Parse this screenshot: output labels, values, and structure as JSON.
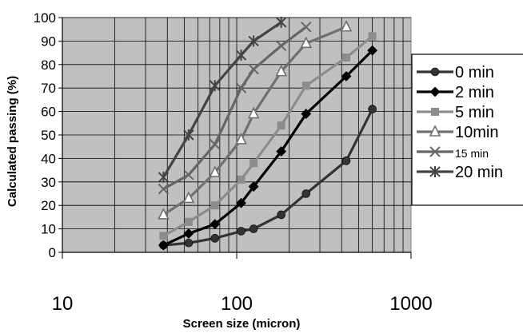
{
  "chart_data": {
    "type": "line",
    "xscale": "log",
    "xlim": [
      10,
      1000
    ],
    "ylim": [
      0,
      100
    ],
    "xticks": [
      "10",
      "100",
      "1000"
    ],
    "yticks": [
      "0",
      "10",
      "20",
      "30",
      "40",
      "50",
      "60",
      "70",
      "80",
      "90",
      "100"
    ],
    "xlabel": "Screen size (micron)",
    "ylabel": "Calculated passing (%)",
    "grid": true,
    "plot_background": "#c0c0c0",
    "legend_position": "right",
    "series": [
      {
        "name": "0 min",
        "marker": "circle",
        "color": "#333333",
        "x": [
          38,
          53,
          75,
          106,
          125,
          180,
          250,
          425,
          600
        ],
        "y": [
          3,
          4,
          6,
          9,
          10,
          16,
          25,
          39,
          61
        ]
      },
      {
        "name": "2 min",
        "marker": "diamond",
        "color": "#000000",
        "x": [
          38,
          53,
          75,
          106,
          125,
          180,
          250,
          425,
          600
        ],
        "y": [
          3,
          8,
          12,
          21,
          28,
          43,
          59,
          75,
          86
        ]
      },
      {
        "name": "5 min",
        "marker": "square",
        "color": "#8c8c8c",
        "x": [
          38,
          53,
          75,
          106,
          125,
          180,
          250,
          425,
          600
        ],
        "y": [
          7,
          13,
          20,
          31,
          38,
          54,
          71,
          83,
          92
        ]
      },
      {
        "name": "10min",
        "marker": "triangle",
        "color": "#707070",
        "x": [
          38,
          53,
          75,
          106,
          125,
          180,
          250,
          425
        ],
        "y": [
          16,
          23,
          34,
          48,
          59,
          77,
          89,
          96
        ]
      },
      {
        "name": "15 min",
        "marker": "x",
        "color": "#666666",
        "x": [
          38,
          53,
          75,
          106,
          125,
          180,
          250
        ],
        "y": [
          27,
          33,
          46,
          70,
          78,
          88,
          96
        ]
      },
      {
        "name": "20 min",
        "marker": "star",
        "color": "#444444",
        "x": [
          38,
          53,
          75,
          106,
          125,
          180
        ],
        "y": [
          32,
          50,
          71,
          84,
          90,
          98
        ]
      }
    ]
  }
}
